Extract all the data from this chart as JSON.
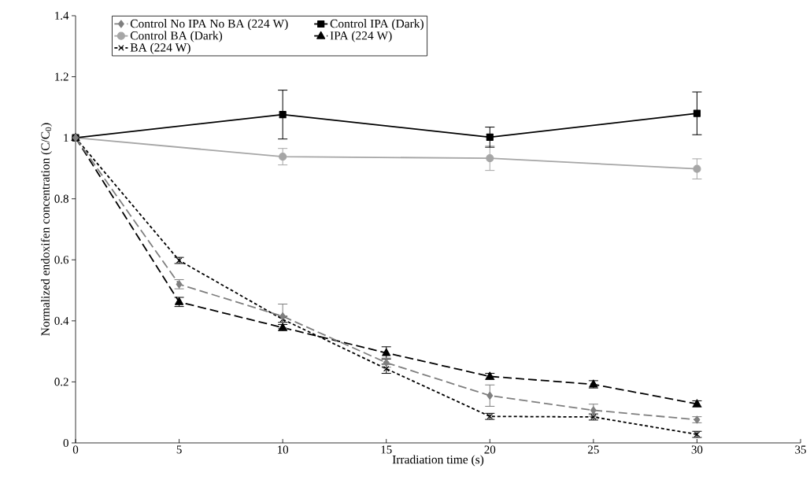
{
  "chart_data": {
    "type": "line",
    "xlabel": "Irradiation time (s)",
    "ylabel": "Normalized endoxifen concentration (C/C$_{0}$)",
    "xlim": [
      0,
      35
    ],
    "xticks": [
      0,
      5,
      10,
      15,
      20,
      25,
      30,
      35
    ],
    "ylim": [
      0,
      1.4
    ],
    "yticks": [
      0,
      0.2,
      0.4,
      0.6,
      0.8,
      1,
      1.2,
      1.4
    ],
    "legend": "top",
    "grid": false,
    "series": [
      {
        "name": "Control No IPA No BA (224 W)",
        "color": "#7f7f7f",
        "marker": "diamond",
        "line_style": "dashed",
        "x": [
          0,
          5,
          10,
          15,
          20,
          25,
          30
        ],
        "values": [
          1,
          0.52,
          0.415,
          0.263,
          0.155,
          0.107,
          0.076
        ],
        "errors": [
          null,
          0.015,
          0.04,
          0.015,
          0.035,
          0.02,
          0.01
        ]
      },
      {
        "name": "Control IPA (Dark)",
        "color": "#000000",
        "marker": "square",
        "line_style": "solid",
        "x": [
          0,
          10,
          20,
          30
        ],
        "values": [
          1,
          1.076,
          1.002,
          1.08
        ],
        "errors": [
          null,
          0.08,
          0.033,
          0.07
        ]
      },
      {
        "name": "Control BA (Dark)",
        "color": "#a6a6a6",
        "marker": "circle",
        "line_style": "solid",
        "x": [
          0,
          10,
          20,
          30
        ],
        "values": [
          1,
          0.938,
          0.933,
          0.898
        ],
        "errors": [
          null,
          0.027,
          0.04,
          0.033
        ]
      },
      {
        "name": "IPA (224 W)",
        "color": "#000000",
        "marker": "triangle",
        "line_style": "dashed",
        "x": [
          0,
          5,
          10,
          15,
          20,
          25,
          30
        ],
        "values": [
          1,
          0.462,
          0.378,
          0.295,
          0.218,
          0.192,
          0.128
        ],
        "errors": [
          null,
          0.015,
          0.01,
          0.02,
          0.01,
          0.012,
          0.01
        ]
      },
      {
        "name": "BA (224 W)",
        "color": "#000000",
        "marker": "cross",
        "line_style": "dotted",
        "x": [
          0,
          5,
          10,
          15,
          20,
          25,
          30
        ],
        "values": [
          1,
          0.598,
          0.405,
          0.243,
          0.087,
          0.085,
          0.028
        ],
        "errors": [
          null,
          0.01,
          0.01,
          0.015,
          0.01,
          0.01,
          0.01
        ]
      }
    ]
  }
}
